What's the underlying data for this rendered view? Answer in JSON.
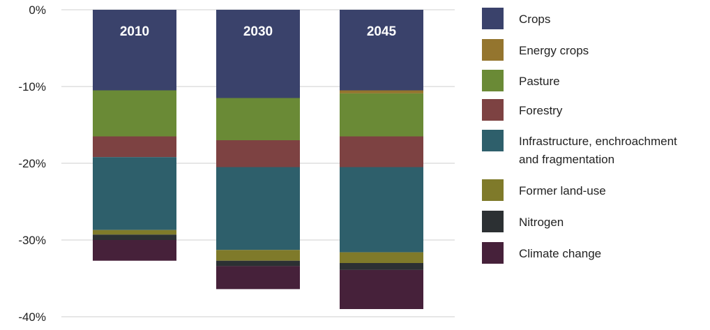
{
  "chart_data": {
    "type": "bar",
    "stacked": true,
    "orientation": "vertical",
    "categories": [
      "2010",
      "2030",
      "2045"
    ],
    "y_ticks": [
      "0%",
      "-10%",
      "-20%",
      "-30%",
      "-40%"
    ],
    "ylim": [
      -40,
      0
    ],
    "y_unit": "%",
    "grid": true,
    "legend_position": "right",
    "series": [
      {
        "name": "Crops",
        "color": "#3a426b",
        "values": [
          -10.5,
          -11.5,
          -10.5
        ]
      },
      {
        "name": "Energy crops",
        "color": "#94752e",
        "values": [
          0,
          0,
          -0.4
        ]
      },
      {
        "name": "Pasture",
        "color": "#6a8a36",
        "values": [
          -6.0,
          -5.5,
          -5.6
        ]
      },
      {
        "name": "Forestry",
        "color": "#7d4242",
        "values": [
          -2.7,
          -3.5,
          -4.0
        ]
      },
      {
        "name": "Infrastructure, enchroachment and fragmentation",
        "legend_lines": [
          "Infrastructure, enchroachment",
          "and fragmentation"
        ],
        "color": "#2e5f6b",
        "values": [
          -9.5,
          -10.8,
          -11.1
        ]
      },
      {
        "name": "Former land-use",
        "color": "#7f7a2a",
        "values": [
          -0.6,
          -1.4,
          -1.4
        ]
      },
      {
        "name": "Nitrogen",
        "color": "#2c3033",
        "values": [
          -0.7,
          -0.7,
          -0.9
        ]
      },
      {
        "name": "Climate change",
        "color": "#46213a",
        "values": [
          -2.7,
          -3.0,
          -5.1
        ]
      }
    ]
  }
}
